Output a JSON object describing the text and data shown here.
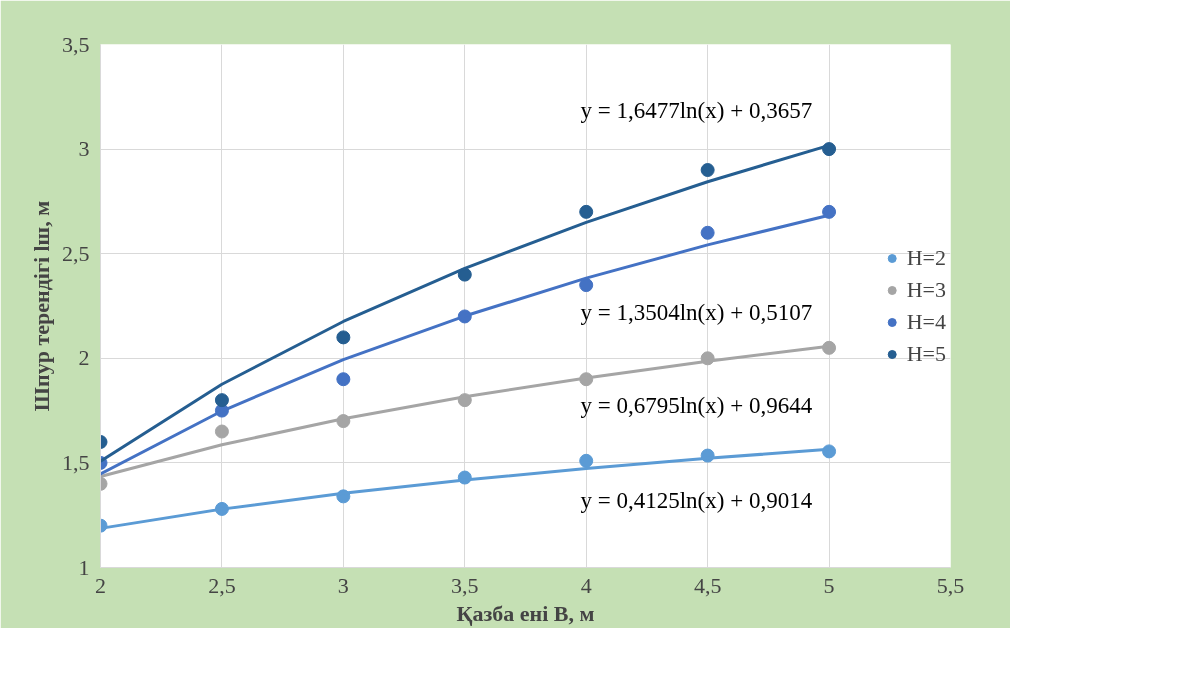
{
  "chart_data": {
    "type": "scatter",
    "xlabel": "Қазба ені B, м",
    "ylabel": "Шпур терендігі lш, м",
    "x": [
      2,
      2.5,
      3,
      3.5,
      4,
      4.5,
      5
    ],
    "series": [
      {
        "name": "H=2",
        "color": "#5b9bd5",
        "values": [
          1.2,
          1.28,
          1.34,
          1.43,
          1.51,
          1.535,
          1.555
        ]
      },
      {
        "name": "H=3",
        "color": "#a5a5a5",
        "values": [
          1.4,
          1.65,
          1.7,
          1.8,
          1.9,
          2.0,
          2.05
        ]
      },
      {
        "name": "H=4",
        "color": "#4472c4",
        "values": [
          1.5,
          1.75,
          1.9,
          2.2,
          2.35,
          2.6,
          2.7
        ]
      },
      {
        "name": "H=5",
        "color": "#255e91",
        "values": [
          1.6,
          1.8,
          2.1,
          2.4,
          2.7,
          2.9,
          3.0
        ]
      },
      {
        "type": "line",
        "marker": "none",
        "color": "#5b9bd5",
        "x": [
          2,
          2.5,
          3,
          3.5,
          4,
          4.5,
          5
        ],
        "values": [
          1.187,
          1.279,
          1.355,
          1.418,
          1.473,
          1.522,
          1.565
        ]
      },
      {
        "type": "line",
        "marker": "none",
        "color": "#a5a5a5",
        "x": [
          2,
          2.5,
          3,
          3.5,
          4,
          4.5,
          5
        ],
        "values": [
          1.435,
          1.587,
          1.711,
          1.816,
          1.906,
          1.986,
          2.058
        ]
      },
      {
        "type": "line",
        "marker": "none",
        "color": "#4472c4",
        "x": [
          2,
          2.5,
          3,
          3.5,
          4,
          4.5,
          5
        ],
        "values": [
          1.447,
          1.748,
          1.994,
          2.202,
          2.383,
          2.542,
          2.684
        ]
      },
      {
        "type": "line",
        "marker": "none",
        "color": "#255e91",
        "x": [
          2,
          2.5,
          3,
          3.5,
          4,
          4.5,
          5
        ],
        "values": [
          1.508,
          1.876,
          2.176,
          2.43,
          2.65,
          2.844,
          3.018
        ]
      }
    ],
    "annotations": [
      "y = 1,6477ln(x) + 0,3657",
      "y = 1,3504ln(x) + 0,5107",
      "y = 0,6795ln(x) + 0,9644",
      "y = 0,4125ln(x) + 0,9014"
    ],
    "xlim": [
      2,
      5.5
    ],
    "ylim": [
      1,
      3.5
    ],
    "xticks": [
      2,
      {
        "value": 2.5,
        "label": "2,5"
      },
      3,
      {
        "value": 3.5,
        "label": "3,5"
      },
      4,
      {
        "value": 4.5,
        "label": "4,5"
      },
      5,
      {
        "value": 5.5,
        "label": "5,5"
      }
    ],
    "yticks": [
      1,
      {
        "value": 1.5,
        "label": "1,5"
      },
      2,
      {
        "value": 2.5,
        "label": "2,5"
      },
      3,
      {
        "value": 3.5,
        "label": "3,5"
      }
    ],
    "grid": true,
    "legend": "right",
    "marker": "circle",
    "line_style": "solid"
  }
}
